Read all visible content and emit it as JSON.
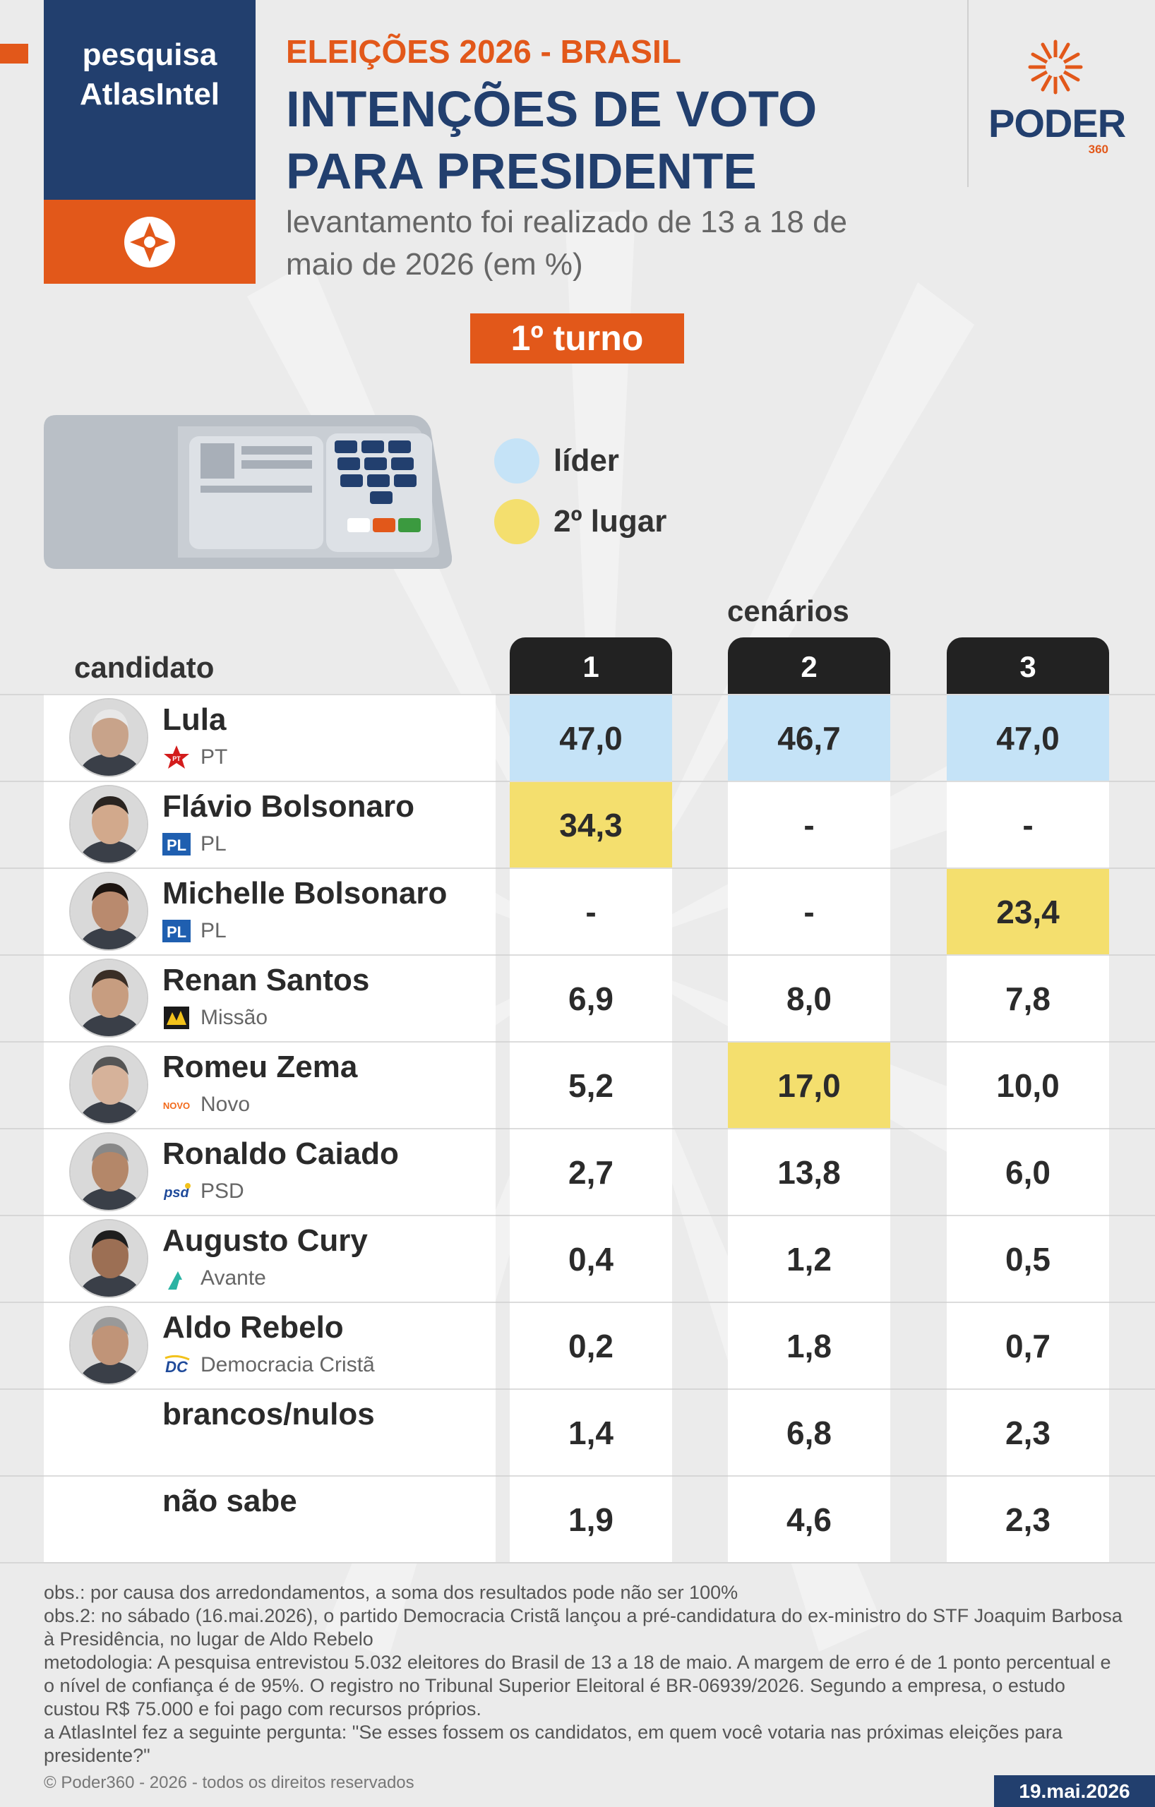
{
  "brand": {
    "line1": "pesquisa",
    "line2": "AtlasIntel"
  },
  "header": {
    "kicker": "ELEIÇÕES 2026 - BRASIL",
    "title": "INTENÇÕES DE VOTO PARA PRESIDENTE",
    "subtitle": "levantamento foi realizado de 13 a 18 de maio de 2026 (em %)"
  },
  "publisher": {
    "name": "PODER",
    "number": "360"
  },
  "turno": "1º turno",
  "legend": [
    {
      "label": "líder",
      "color": "#c5e3f7"
    },
    {
      "label": "2º lugar",
      "color": "#f4df6e"
    }
  ],
  "chart_data": {
    "type": "table",
    "title": "INTENÇÕES DE VOTO PARA PRESIDENTE",
    "group_label": "cenários",
    "row_header": "candidato",
    "columns": [
      "1",
      "2",
      "3"
    ],
    "rows": [
      {
        "name": "Lula",
        "party": "PT",
        "values": [
          "47,0",
          "46,7",
          "47,0"
        ],
        "highlight": [
          "leader",
          "leader",
          "leader"
        ]
      },
      {
        "name": "Flávio Bolsonaro",
        "party": "PL",
        "values": [
          "34,3",
          "-",
          "-"
        ],
        "highlight": [
          "second",
          "",
          ""
        ]
      },
      {
        "name": "Michelle Bolsonaro",
        "party": "PL",
        "values": [
          "-",
          "-",
          "23,4"
        ],
        "highlight": [
          "",
          "",
          "second"
        ]
      },
      {
        "name": "Renan Santos",
        "party": "Missão",
        "values": [
          "6,9",
          "8,0",
          "7,8"
        ],
        "highlight": [
          "",
          "",
          ""
        ]
      },
      {
        "name": "Romeu Zema",
        "party": "Novo",
        "values": [
          "5,2",
          "17,0",
          "10,0"
        ],
        "highlight": [
          "",
          "second",
          ""
        ]
      },
      {
        "name": "Ronaldo Caiado",
        "party": "PSD",
        "values": [
          "2,7",
          "13,8",
          "6,0"
        ],
        "highlight": [
          "",
          "",
          ""
        ]
      },
      {
        "name": "Augusto Cury",
        "party": "Avante",
        "values": [
          "0,4",
          "1,2",
          "0,5"
        ],
        "highlight": [
          "",
          "",
          ""
        ]
      },
      {
        "name": "Aldo Rebelo",
        "party": "Democracia Cristã",
        "values": [
          "0,2",
          "1,8",
          "0,7"
        ],
        "highlight": [
          "",
          "",
          ""
        ]
      },
      {
        "name": "brancos/nulos",
        "party": "",
        "values": [
          "1,4",
          "6,8",
          "2,3"
        ],
        "highlight": [
          "",
          "",
          ""
        ]
      },
      {
        "name": "não sabe",
        "party": "",
        "values": [
          "1,9",
          "4,6",
          "2,3"
        ],
        "highlight": [
          "",
          "",
          ""
        ]
      }
    ]
  },
  "notes": [
    "obs.: por causa dos arredondamentos, a soma dos resultados pode não ser 100%",
    "obs.2: no sábado (16.mai.2026), o partido Democracia Cristã lançou a pré-candidatura do ex-ministro do STF Joaquim Barbosa à Presidência, no lugar de Aldo Rebelo",
    "metodologia: A pesquisa entrevistou 5.032 eleitores do Brasil de 13 a 18 de maio. A margem de erro é de 1 ponto percentual e o nível de confiança é de 95%. O registro no Tribunal Superior Eleitoral é BR-06939/2026. Segundo a empresa, o estudo custou R$ 75.000 e foi pago com recursos próprios.",
    "a AtlasIntel fez a seguinte pergunta: \"Se esses fossem os candidatos, em quem você votaria nas próximas eleições para presidente?\""
  ],
  "footer": {
    "copyright": "© Poder360 - 2026 - todos os direitos reservados",
    "date": "19.mai.2026"
  },
  "colors": {
    "brand_blue": "#223f6e",
    "brand_orange": "#e2581a",
    "leader": "#c5e3f7",
    "second": "#f4df6e"
  }
}
